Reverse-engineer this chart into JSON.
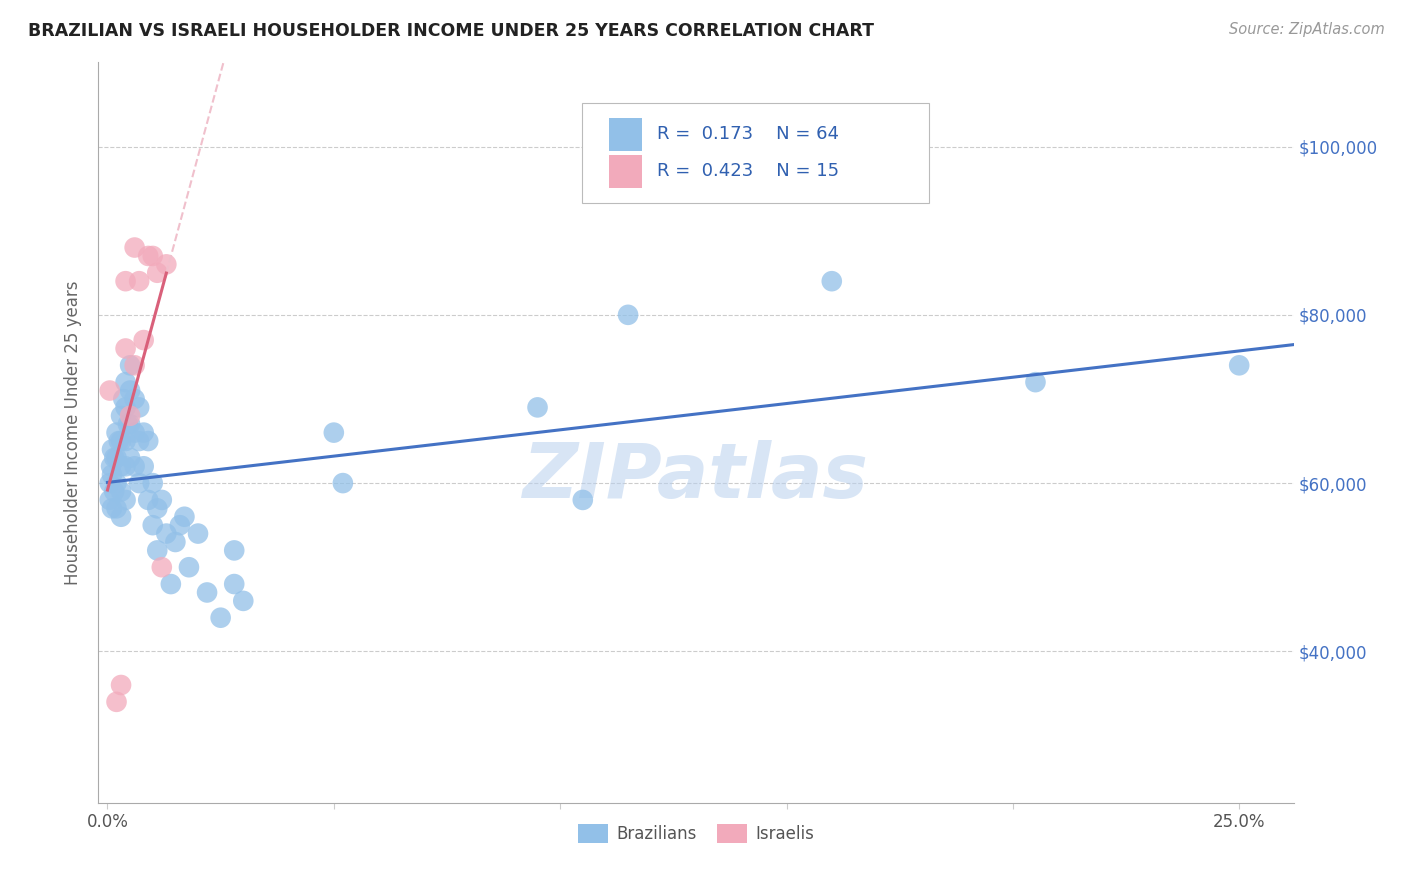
{
  "title": "BRAZILIAN VS ISRAELI HOUSEHOLDER INCOME UNDER 25 YEARS CORRELATION CHART",
  "source": "Source: ZipAtlas.com",
  "ylabel": "Householder Income Under 25 years",
  "xlim": [
    -0.002,
    0.262
  ],
  "ylim": [
    22000,
    110000
  ],
  "brazil_R": 0.173,
  "brazil_N": 64,
  "israel_R": 0.423,
  "israel_N": 15,
  "brazil_color": "#92C0E8",
  "israel_color": "#F2AABB",
  "brazil_line_color": "#4472C4",
  "israel_line_color": "#D9607A",
  "israel_dashed_color": "#F0C0CC",
  "watermark": "ZIPatlas",
  "brazil_x": [
    0.0005,
    0.0005,
    0.0008,
    0.001,
    0.001,
    0.001,
    0.0015,
    0.0015,
    0.002,
    0.002,
    0.002,
    0.002,
    0.0025,
    0.003,
    0.003,
    0.003,
    0.003,
    0.003,
    0.0035,
    0.004,
    0.004,
    0.004,
    0.004,
    0.004,
    0.0045,
    0.005,
    0.005,
    0.005,
    0.005,
    0.006,
    0.006,
    0.006,
    0.007,
    0.007,
    0.007,
    0.008,
    0.008,
    0.009,
    0.009,
    0.01,
    0.01,
    0.011,
    0.011,
    0.012,
    0.013,
    0.014,
    0.015,
    0.016,
    0.017,
    0.018,
    0.02,
    0.022,
    0.025,
    0.028,
    0.028,
    0.03,
    0.05,
    0.052,
    0.095,
    0.105,
    0.115,
    0.16,
    0.205,
    0.25
  ],
  "brazil_y": [
    60000,
    58000,
    62000,
    64000,
    61000,
    57000,
    63000,
    59000,
    66000,
    63000,
    60000,
    57000,
    65000,
    68000,
    65000,
    62000,
    59000,
    56000,
    70000,
    72000,
    69000,
    65000,
    62000,
    58000,
    67000,
    74000,
    71000,
    67000,
    63000,
    70000,
    66000,
    62000,
    69000,
    65000,
    60000,
    66000,
    62000,
    65000,
    58000,
    60000,
    55000,
    57000,
    52000,
    58000,
    54000,
    48000,
    53000,
    55000,
    56000,
    50000,
    54000,
    47000,
    44000,
    52000,
    48000,
    46000,
    66000,
    60000,
    69000,
    58000,
    80000,
    84000,
    72000,
    74000
  ],
  "israel_x": [
    0.0005,
    0.002,
    0.003,
    0.004,
    0.004,
    0.005,
    0.006,
    0.006,
    0.007,
    0.008,
    0.009,
    0.01,
    0.011,
    0.012,
    0.013
  ],
  "israel_y": [
    71000,
    34000,
    36000,
    76000,
    84000,
    68000,
    88000,
    74000,
    84000,
    77000,
    87000,
    87000,
    85000,
    50000,
    86000
  ],
  "x_ticks": [
    0.0,
    0.05,
    0.1,
    0.15,
    0.2,
    0.25
  ],
  "x_tick_labels": [
    "0.0%",
    "",
    "",
    "",
    "",
    "25.0%"
  ],
  "y_ticks": [
    40000,
    60000,
    80000,
    100000
  ],
  "y_tick_labels_right": [
    "$40,000",
    "$60,000",
    "$80,000",
    "$100,000"
  ]
}
